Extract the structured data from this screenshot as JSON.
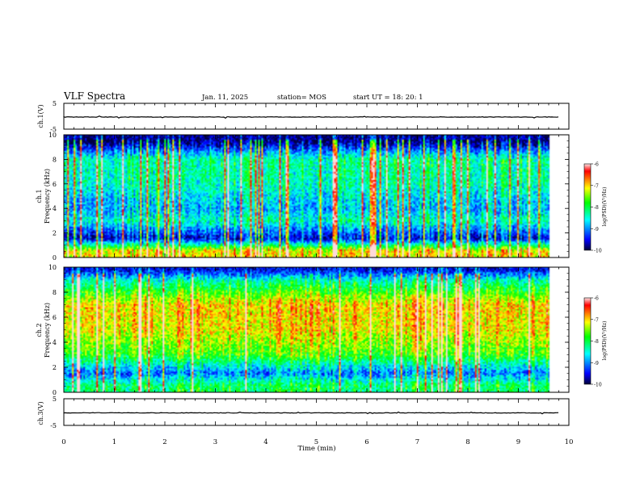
{
  "header": {
    "title": "VLF Spectra",
    "date": "Jan. 11, 2025",
    "station": "station= MOS",
    "start": "start  UT =   18: 20: 1"
  },
  "chart_data": [
    {
      "type": "line",
      "panel": "ch1-waveform",
      "ylabel": "ch.1(V)",
      "ylim": [
        -5,
        5
      ],
      "yticks": [
        "5",
        "-5"
      ],
      "xlim": [
        0,
        10
      ],
      "series": [
        {
          "x": [
            0,
            9.8
          ],
          "values": [
            -0.3,
            -0.3
          ]
        }
      ]
    },
    {
      "type": "heatmap",
      "panel": "ch1-spectrogram",
      "ylabel": "ch.1\nFrequency (kHz)",
      "xlim": [
        0,
        10
      ],
      "xdata_end": 9.8,
      "ylim": [
        0,
        10
      ],
      "yticks": [
        "0",
        "2",
        "4",
        "6",
        "8",
        "10"
      ],
      "colorbar": {
        "label": "log(PSD)(V²/Hz)",
        "range": [
          -10,
          -6
        ],
        "ticks": [
          "-6",
          "-7",
          "-8",
          "-9",
          "-10"
        ]
      },
      "profile": [
        {
          "f": 0.5,
          "log_psd": -7.0
        },
        {
          "f": 1.5,
          "log_psd": -9.5
        },
        {
          "f": 3.0,
          "log_psd": -8.3
        },
        {
          "f": 4.0,
          "log_psd": -8.8
        },
        {
          "f": 6.0,
          "log_psd": -8.3
        },
        {
          "f": 8.0,
          "log_psd": -8.2
        },
        {
          "f": 9.5,
          "log_psd": -9.8
        }
      ]
    },
    {
      "type": "heatmap",
      "panel": "ch2-spectrogram",
      "ylabel": "ch.2\nFrequency (kHz)",
      "xlim": [
        0,
        10
      ],
      "xdata_end": 9.8,
      "ylim": [
        0,
        10
      ],
      "yticks": [
        "0",
        "2",
        "4",
        "6",
        "8",
        "10"
      ],
      "colorbar": {
        "label": "log(PSD)(V²/Hz)",
        "range": [
          -10,
          -6
        ],
        "ticks": [
          "-6",
          "-7",
          "-8",
          "-9",
          "-10"
        ]
      },
      "profile": [
        {
          "f": 0.5,
          "log_psd": -8.0
        },
        {
          "f": 1.5,
          "log_psd": -9.0
        },
        {
          "f": 3.0,
          "log_psd": -7.6
        },
        {
          "f": 5.0,
          "log_psd": -7.0
        },
        {
          "f": 7.0,
          "log_psd": -6.9
        },
        {
          "f": 9.0,
          "log_psd": -8.3
        },
        {
          "f": 9.8,
          "log_psd": -9.5
        }
      ]
    },
    {
      "type": "line",
      "panel": "ch3-waveform",
      "ylabel": "ch.3(V)",
      "ylim": [
        -5,
        5
      ],
      "yticks": [
        "5",
        "-5"
      ],
      "xlim": [
        0,
        10
      ],
      "xticks": [
        "0",
        "1",
        "2",
        "3",
        "4",
        "5",
        "6",
        "7",
        "8",
        "9",
        "10"
      ],
      "xlabel": "Time  (min)",
      "series": [
        {
          "x": [
            0,
            9.8
          ],
          "values": [
            -0.3,
            -0.3
          ]
        }
      ]
    }
  ]
}
